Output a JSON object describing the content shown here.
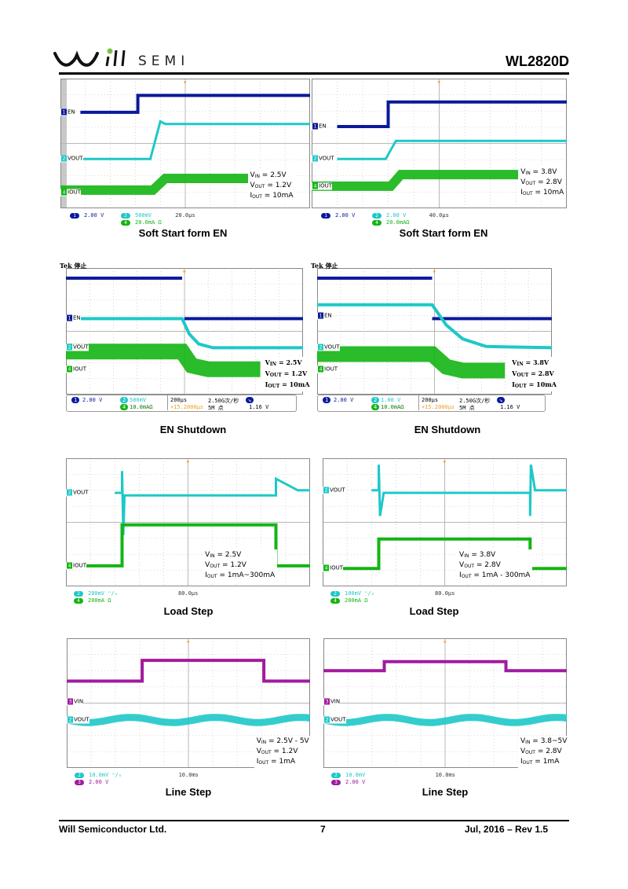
{
  "header": {
    "logo_text": "SEMI",
    "part_number": "WL2820D"
  },
  "colors": {
    "ch1": "#0a1a9a",
    "ch2": "#1ec8c8",
    "ch3": "#a21a9e",
    "ch4": "#13b513",
    "trigger": "#f0a020",
    "grid": "#b8b8b8"
  },
  "plots": [
    {
      "caption": "Soft Start form EN",
      "channels": [
        {
          "num": "1",
          "name": "EN",
          "ch": "ch1"
        },
        {
          "num": "2",
          "name": "VOUT",
          "ch": "ch2"
        },
        {
          "num": "4",
          "name": "IOUT",
          "ch": "ch4"
        }
      ],
      "annotation": [
        {
          "sym": "V",
          "sub": "IN",
          "val": " = 2.5V"
        },
        {
          "sym": "V",
          "sub": "OUT",
          "val": " = 1.2V"
        },
        {
          "sym": "I",
          "sub": "OUT",
          "val": " = 10mA"
        }
      ],
      "legend": [
        {
          "num": "1",
          "ch": "ch1",
          "text": "2.00 V"
        },
        {
          "num": "2",
          "ch": "ch2",
          "text": "500mV"
        },
        {
          "num": "4",
          "ch": "ch4",
          "text": "20.0mA Ω"
        }
      ],
      "timebase": "20.0µs"
    },
    {
      "caption": "Soft Start form EN",
      "channels": [
        {
          "num": "1",
          "name": "EN",
          "ch": "ch1"
        },
        {
          "num": "2",
          "name": "VOUT",
          "ch": "ch2"
        },
        {
          "num": "4",
          "name": "IOUT",
          "ch": "ch4"
        }
      ],
      "annotation": [
        {
          "sym": "V",
          "sub": "IN",
          "val": " = 3.8V"
        },
        {
          "sym": "V",
          "sub": "OUT",
          "val": " = 2.8V"
        },
        {
          "sym": "I",
          "sub": "OUT",
          "val": " = 10mA"
        }
      ],
      "legend": [
        {
          "num": "1",
          "ch": "ch1",
          "text": "2.00 V"
        },
        {
          "num": "2",
          "ch": "ch2",
          "text": "2.00 V"
        },
        {
          "num": "4",
          "ch": "ch4",
          "text": "20.0mAΩ"
        }
      ],
      "timebase": "40.0µs"
    },
    {
      "caption": "EN Shutdown",
      "tek": "Tek 停止",
      "channels": [
        {
          "num": "1",
          "name": "EN",
          "ch": "ch1"
        },
        {
          "num": "2",
          "name": "VOUT",
          "ch": "ch2"
        },
        {
          "num": "4",
          "name": "IOUT",
          "ch": "ch4"
        }
      ],
      "annotation": [
        {
          "sym": "V",
          "sub": "IN",
          "val": " = 2.5V"
        },
        {
          "sym": "V",
          "sub": "OUT",
          "val": " = 1.2V"
        },
        {
          "sym": "I",
          "sub": "OUT",
          "val": " = 10mA"
        }
      ],
      "status": {
        "ch1": "2.00 V",
        "ch2": "500mV",
        "ch4": "10.0mAΩ",
        "time": "200µs",
        "delay": "+15.2000µs",
        "rate": "2.50G次/秒",
        "points": "5M 点",
        "trig_level": "1.16 V",
        "ch1_num": "1",
        "ch2_num": "2",
        "ch4_num": "4"
      }
    },
    {
      "caption": "EN Shutdown",
      "tek": "Tek 停止",
      "channels": [
        {
          "num": "1",
          "name": "EN",
          "ch": "ch1"
        },
        {
          "num": "2",
          "name": "VOUT",
          "ch": "ch2"
        },
        {
          "num": "4",
          "name": "IOUT",
          "ch": "ch4"
        }
      ],
      "annotation": [
        {
          "sym": "V",
          "sub": "IN",
          "val": " = 3.8V"
        },
        {
          "sym": "V",
          "sub": "OUT",
          "val": " = 2.8V"
        },
        {
          "sym": "I",
          "sub": "OUT",
          "val": " = 10mA"
        }
      ],
      "status": {
        "ch1": "2.00 V",
        "ch2": "1.00 V",
        "ch4": "10.0mAΩ",
        "time": "200µs",
        "delay": "+15.2000µs",
        "rate": "2.50G次/秒",
        "points": "5M 点",
        "trig_level": "1.16 V",
        "ch1_num": "1",
        "ch2_num": "2",
        "ch4_num": "4"
      }
    },
    {
      "caption": "Load Step",
      "channels": [
        {
          "num": "2",
          "name": "VOUT",
          "ch": "ch2"
        },
        {
          "num": "4",
          "name": "IOUT",
          "ch": "ch4"
        }
      ],
      "annotation": [
        {
          "sym": "V",
          "sub": "IN",
          "val": " = 2.5V"
        },
        {
          "sym": "V",
          "sub": "OUT",
          "val": " = 1.2V"
        },
        {
          "sym": "I",
          "sub": "OUT",
          "val": " = 1mA~300mA"
        }
      ],
      "legend": [
        {
          "num": "2",
          "ch": "ch2",
          "text": "200mV ⁿ/ₙ"
        },
        {
          "num": "4",
          "ch": "ch4",
          "text": "200mA Ω"
        }
      ],
      "timebase": "80.0µs"
    },
    {
      "caption": "Load Step",
      "channels": [
        {
          "num": "2",
          "name": "VOUT",
          "ch": "ch2"
        },
        {
          "num": "4",
          "name": "IOUT",
          "ch": "ch4"
        }
      ],
      "annotation": [
        {
          "sym": "V",
          "sub": "IN",
          "val": " = 3.8V"
        },
        {
          "sym": "V",
          "sub": "OUT",
          "val": " = 2.8V"
        },
        {
          "sym": "I",
          "sub": "OUT",
          "val": " = 1mA - 300mA"
        }
      ],
      "legend": [
        {
          "num": "2",
          "ch": "ch2",
          "text": "100mV ⁿ/ₙ"
        },
        {
          "num": "4",
          "ch": "ch4",
          "text": "200mA Ω"
        }
      ],
      "timebase": "80.0µs"
    },
    {
      "caption": "Line Step",
      "channels": [
        {
          "num": "3",
          "name": "VIN",
          "ch": "ch3"
        },
        {
          "num": "2",
          "name": "VOUT",
          "ch": "ch2"
        }
      ],
      "annotation": [
        {
          "sym": "V",
          "sub": "IN",
          "val": " = 2.5V - 5V"
        },
        {
          "sym": "V",
          "sub": "OUT",
          "val": " = 1.2V"
        },
        {
          "sym": "I",
          "sub": "OUT",
          "val": " = 1mA"
        }
      ],
      "legend": [
        {
          "num": "2",
          "ch": "ch2",
          "text": "10.0mV ⁿ/ₙ"
        },
        {
          "num": "3",
          "ch": "ch3",
          "text": "2.00 V"
        }
      ],
      "timebase": "10.0ms"
    },
    {
      "caption": "Line Step",
      "channels": [
        {
          "num": "3",
          "name": "VIN",
          "ch": "ch3"
        },
        {
          "num": "2",
          "name": "VOUT",
          "ch": "ch2"
        }
      ],
      "annotation": [
        {
          "sym": "V",
          "sub": "IN",
          "val": " = 3.8~5V"
        },
        {
          "sym": "V",
          "sub": "OUT",
          "val": " = 2.8V"
        },
        {
          "sym": "I",
          "sub": "OUT",
          "val": " = 1mA"
        }
      ],
      "legend": [
        {
          "num": "2",
          "ch": "ch2",
          "text": "10.0mV"
        },
        {
          "num": "3",
          "ch": "ch3",
          "text": "2.00 V"
        }
      ],
      "timebase": "10.0ms"
    }
  ],
  "footer": {
    "company": "Will Semiconductor Ltd.",
    "page": "7",
    "date_rev": "Jul, 2016 – Rev 1.5"
  }
}
